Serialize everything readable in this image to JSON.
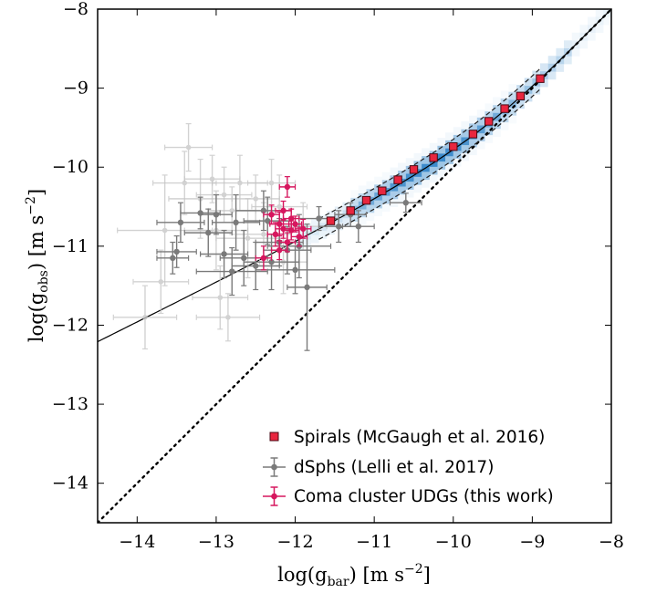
{
  "chart_data": {
    "type": "scatter",
    "title": "",
    "xlabel": "log(g_bar) [m s^-2]",
    "ylabel": "log(g_obs) [m s^-2]",
    "xlabel_parts": {
      "pre": "log(g",
      "sub": "bar",
      "post": ")  [m s",
      "sup": "−2",
      "end": "]"
    },
    "ylabel_parts": {
      "pre": "log(g",
      "sub": "obs",
      "post": ")  [m s",
      "sup": "−2",
      "end": "]"
    },
    "xlim": [
      -14.5,
      -8
    ],
    "ylim": [
      -14.5,
      -8
    ],
    "x_ticks": [
      -14,
      -13,
      -12,
      -11,
      -10,
      -9,
      -8
    ],
    "x_tick_labels": [
      "−14",
      "−13",
      "−12",
      "−11",
      "−10",
      "−9",
      "−8"
    ],
    "y_ticks": [
      -14,
      -13,
      -12,
      -11,
      -10,
      -9,
      -8
    ],
    "y_tick_labels": [
      "−14",
      "−13",
      "−12",
      "−11",
      "−10",
      "−9",
      "−8"
    ],
    "grid": false,
    "legend_position": "lower-right",
    "colors": {
      "spirals": "#e8263f",
      "spirals_edge": "#4a0a14",
      "dsphs": "#7a7a7a",
      "dsphs_faint": "#c4c4c4",
      "udgs": "#d6175e",
      "density": "#1a76c2",
      "fit_line": "#000000"
    },
    "legend": [
      {
        "label": "Spirals (McGaugh et al. 2016)",
        "marker": "square"
      },
      {
        "label": "dSphs (Lelli et al. 2017)",
        "marker": "errorbar"
      },
      {
        "label": "Coma cluster UDGs (this work)",
        "marker": "errorbar"
      }
    ],
    "series": [
      {
        "name": "Spirals (McGaugh et al. 2016)",
        "x": [
          -11.55,
          -11.3,
          -11.1,
          -10.9,
          -10.7,
          -10.5,
          -10.25,
          -10.0,
          -9.75,
          -9.55,
          -9.35,
          -9.15,
          -8.9
        ],
        "y": [
          -10.68,
          -10.55,
          -10.42,
          -10.3,
          -10.16,
          -10.03,
          -9.88,
          -9.74,
          -9.58,
          -9.42,
          -9.26,
          -9.1,
          -8.88
        ]
      },
      {
        "name": "dSphs (Lelli et al. 2017)",
        "points": [
          [
            -13.45,
            -10.7,
            0.3,
            0.25
          ],
          [
            -13.5,
            -11.07,
            0.25,
            0.2
          ],
          [
            -13.55,
            -11.15,
            0.2,
            0.2
          ],
          [
            -13.2,
            -10.58,
            0.25,
            0.2
          ],
          [
            -13.1,
            -10.83,
            0.3,
            0.3
          ],
          [
            -13.0,
            -10.6,
            0.2,
            0.25
          ],
          [
            -12.9,
            -11.1,
            0.3,
            0.3
          ],
          [
            -12.75,
            -10.7,
            0.3,
            0.35
          ],
          [
            -12.8,
            -11.32,
            0.45,
            0.3
          ],
          [
            -12.65,
            -11.15,
            0.3,
            0.35
          ],
          [
            -12.5,
            -11.25,
            0.3,
            0.3
          ],
          [
            -12.4,
            -10.55,
            0.35,
            0.25
          ],
          [
            -12.35,
            -10.68,
            0.3,
            0.3
          ],
          [
            -12.2,
            -10.95,
            0.3,
            0.3
          ],
          [
            -12.3,
            -11.2,
            0.35,
            0.35
          ],
          [
            -12.1,
            -11.05,
            0.3,
            0.3
          ],
          [
            -12.0,
            -11.3,
            0.5,
            0.3
          ],
          [
            -11.95,
            -11.0,
            0.4,
            0.4
          ],
          [
            -11.85,
            -11.52,
            0.25,
            0.8
          ],
          [
            -11.7,
            -10.65,
            0.25,
            0.15
          ],
          [
            -11.45,
            -10.75,
            0.25,
            0.2
          ],
          [
            -11.3,
            -10.6,
            0.2,
            0.15
          ],
          [
            -11.2,
            -10.75,
            0.2,
            0.2
          ],
          [
            -10.6,
            -10.45,
            0.2,
            0.12
          ]
        ]
      },
      {
        "name": "dSphs faint",
        "points": [
          [
            -13.65,
            -10.8,
            0.6,
            0.7
          ],
          [
            -13.4,
            -10.2,
            0.4,
            0.4
          ],
          [
            -13.35,
            -9.75,
            0.3,
            0.3
          ],
          [
            -13.2,
            -10.4,
            0.4,
            0.5
          ],
          [
            -13.05,
            -10.15,
            0.35,
            0.3
          ],
          [
            -13.0,
            -10.8,
            0.4,
            0.5
          ],
          [
            -12.9,
            -10.35,
            0.35,
            0.35
          ],
          [
            -12.8,
            -10.55,
            0.3,
            0.3
          ],
          [
            -12.7,
            -10.2,
            0.35,
            0.35
          ],
          [
            -12.6,
            -10.9,
            0.4,
            0.5
          ],
          [
            -12.5,
            -10.4,
            0.3,
            0.3
          ],
          [
            -12.4,
            -10.85,
            0.35,
            0.4
          ],
          [
            -12.3,
            -10.2,
            0.3,
            0.3
          ],
          [
            -12.2,
            -10.5,
            0.35,
            0.4
          ],
          [
            -13.9,
            -11.9,
            0.4,
            0.4
          ],
          [
            -13.7,
            -11.45,
            0.35,
            0.4
          ],
          [
            -12.95,
            -11.65,
            0.35,
            0.4
          ],
          [
            -12.85,
            -11.9,
            0.4,
            0.3
          ],
          [
            -12.15,
            -11.2,
            0.3,
            0.4
          ],
          [
            -11.9,
            -10.75,
            0.3,
            0.3
          ]
        ]
      },
      {
        "name": "Coma cluster UDGs (this work)",
        "points": [
          [
            -12.1,
            -10.25,
            0.1,
            0.13
          ],
          [
            -12.15,
            -10.55,
            0.1,
            0.12
          ],
          [
            -12.05,
            -10.65,
            0.1,
            0.12
          ],
          [
            -12.2,
            -10.72,
            0.12,
            0.15
          ],
          [
            -12.15,
            -10.78,
            0.1,
            0.12
          ],
          [
            -12.05,
            -10.8,
            0.1,
            0.12
          ],
          [
            -12.25,
            -10.85,
            0.1,
            0.15
          ],
          [
            -11.95,
            -10.88,
            0.1,
            0.12
          ],
          [
            -12.1,
            -10.95,
            0.1,
            0.12
          ],
          [
            -12.0,
            -10.72,
            0.08,
            0.1
          ],
          [
            -12.2,
            -11.05,
            0.1,
            0.12
          ],
          [
            -12.4,
            -11.15,
            0.1,
            0.15
          ],
          [
            -12.3,
            -10.6,
            0.1,
            0.12
          ],
          [
            -11.9,
            -10.78,
            0.1,
            0.12
          ]
        ]
      }
    ]
  }
}
